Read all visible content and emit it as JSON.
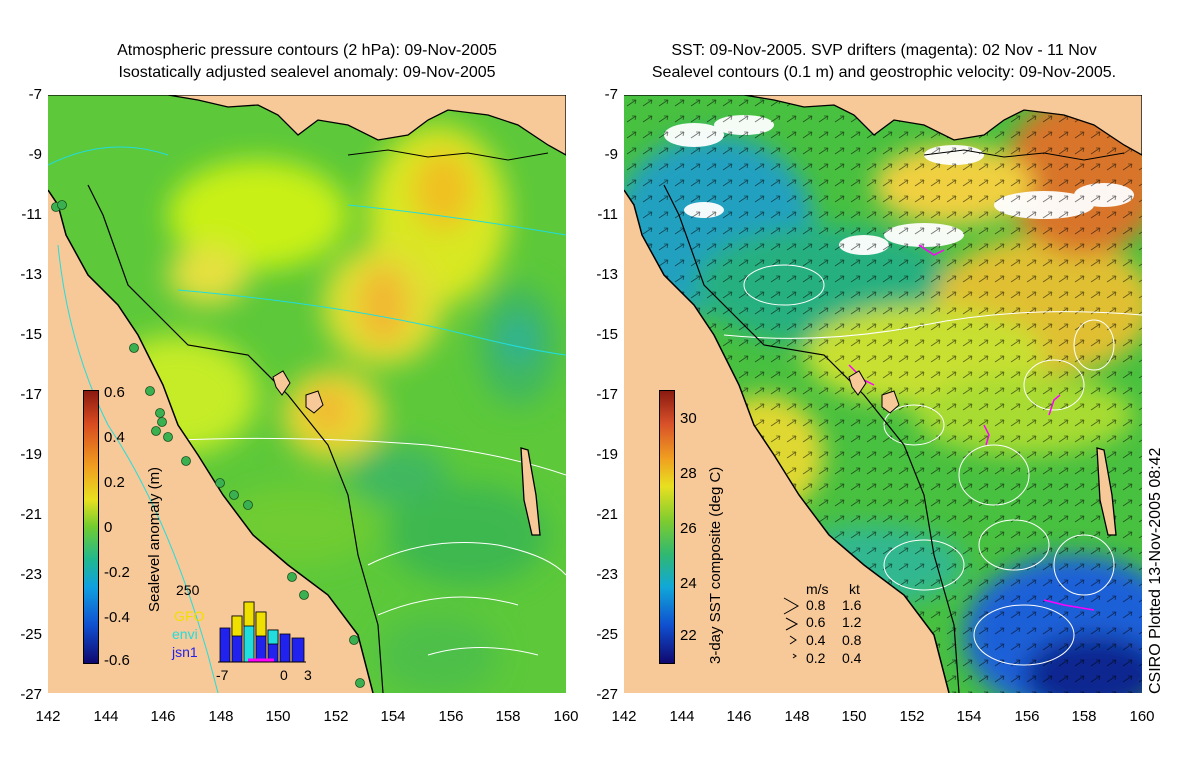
{
  "left_panel": {
    "title_line1": "Atmospheric pressure contours (2 hPa): 09-Nov-2005",
    "title_line2": "Isostatically adjusted sealevel anomaly: 09-Nov-2005",
    "colorbar_label": "Sealevel anomaly (m)",
    "colorbar_ticks": [
      "0.6",
      "0.4",
      "0.2",
      "0",
      "-0.2",
      "-0.4",
      "-0.6"
    ],
    "colorbar_range": [
      -0.6,
      0.6
    ],
    "inset": {
      "ymax_label": "250",
      "x_ticks": [
        "-7",
        "0",
        "3"
      ],
      "legend": [
        {
          "name": "GFO",
          "color": "#f0e000"
        },
        {
          "name": "envi",
          "color": "#22dddd"
        },
        {
          "name": "jsn1",
          "color": "#2222ee"
        }
      ]
    }
  },
  "right_panel": {
    "title_line1": "SST: 09-Nov-2005. SVP drifters (magenta): 02 Nov - 11 Nov",
    "title_line2": "Sealevel contours (0.1 m) and geostrophic velocity: 09-Nov-2005.",
    "colorbar_label": "3-day SST composite (deg C)",
    "colorbar_ticks": [
      "30",
      "28",
      "26",
      "24",
      "22"
    ],
    "velocity_legend": {
      "header_ms": "m/s",
      "header_kt": "kt",
      "rows": [
        {
          "ms": "0.8",
          "kt": "1.6"
        },
        {
          "ms": "0.6",
          "kt": "1.2"
        },
        {
          "ms": "0.4",
          "kt": "0.8"
        },
        {
          "ms": "0.2",
          "kt": "0.4"
        }
      ]
    },
    "credit": "CSIRO Plotted 13-Nov-2005 08:42"
  },
  "axes": {
    "y_ticks": [
      "-7",
      "-9",
      "-11",
      "-13",
      "-15",
      "-17",
      "-19",
      "-21",
      "-23",
      "-25",
      "-27"
    ],
    "x_ticks": [
      "142",
      "144",
      "146",
      "148",
      "150",
      "152",
      "154",
      "156",
      "158",
      "160"
    ]
  },
  "colors": {
    "land": "#f7c898",
    "coastline": "#000000",
    "contour": "#ffffff",
    "pressure_contour": "#22dddd",
    "drifter": "#ff00ff"
  }
}
